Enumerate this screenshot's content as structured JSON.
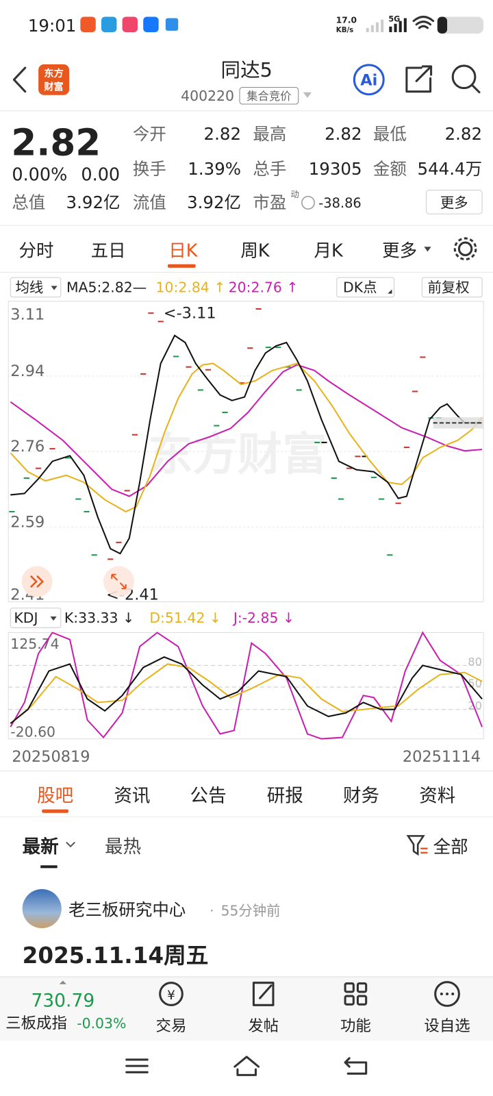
{
  "status_bar": {
    "time": "19:01",
    "speed": "17.0",
    "speed_unit": "KB/s",
    "network": "5G"
  },
  "header": {
    "logo": [
      "东方",
      "财富"
    ],
    "title": "同达5",
    "code": "400220",
    "badge": "集合竞价"
  },
  "quote": {
    "price": "2.82",
    "change_pct": "0.00%",
    "change": "0.00",
    "fields": [
      {
        "label": "今开",
        "value": "2.82"
      },
      {
        "label": "最高",
        "value": "2.82"
      },
      {
        "label": "最低",
        "value": "2.82"
      },
      {
        "label": "换手",
        "value": "1.39%"
      },
      {
        "label": "总手",
        "value": "19305"
      },
      {
        "label": "金额",
        "value": "544.4万"
      },
      {
        "label": "总值",
        "value": "3.92亿"
      },
      {
        "label": "流值",
        "value": "3.92亿"
      }
    ],
    "pe_label": "市盈",
    "pe_superscript": "动",
    "pe_value": "-38.86",
    "more": "更多"
  },
  "chart_tabs": [
    "分时",
    "五日",
    "日K",
    "周K",
    "月K",
    "更多"
  ],
  "kline": {
    "indicator": "均线",
    "ma5": "MA5:2.82—",
    "ma10": "10:2.84 ↑",
    "ma20": "20:2.76 ↑",
    "dk": "DK点",
    "adjust": "前复权",
    "yticks": [
      "3.11",
      "2.94",
      "2.76",
      "2.59",
      "2.41"
    ],
    "max_note": "<-3.11",
    "min_note": "<-2.41",
    "watermark": "东方财富"
  },
  "kdj": {
    "indicator": "KDJ",
    "k": "K:33.33 ↓",
    "d": "D:51.42 ↓",
    "j": "J:-2.85 ↓",
    "top": "125.74",
    "bottom": "-20.60",
    "levels": [
      "80",
      "50",
      "20"
    ]
  },
  "dates": [
    "20250819",
    "20251114"
  ],
  "section_tabs": [
    "股吧",
    "资讯",
    "公告",
    "研报",
    "财务",
    "资料"
  ],
  "filters": {
    "latest": "最新",
    "hot": "最热",
    "all": "全部"
  },
  "post": {
    "author": "老三板研究中心",
    "time": "55分钟前",
    "title": "2025.11.14周五"
  },
  "bottom_bar": {
    "index_value": "730.79",
    "index_name": "三板成指",
    "index_change": "-0.03%",
    "items": [
      "交易",
      "发帖",
      "功能",
      "设自选"
    ]
  }
}
